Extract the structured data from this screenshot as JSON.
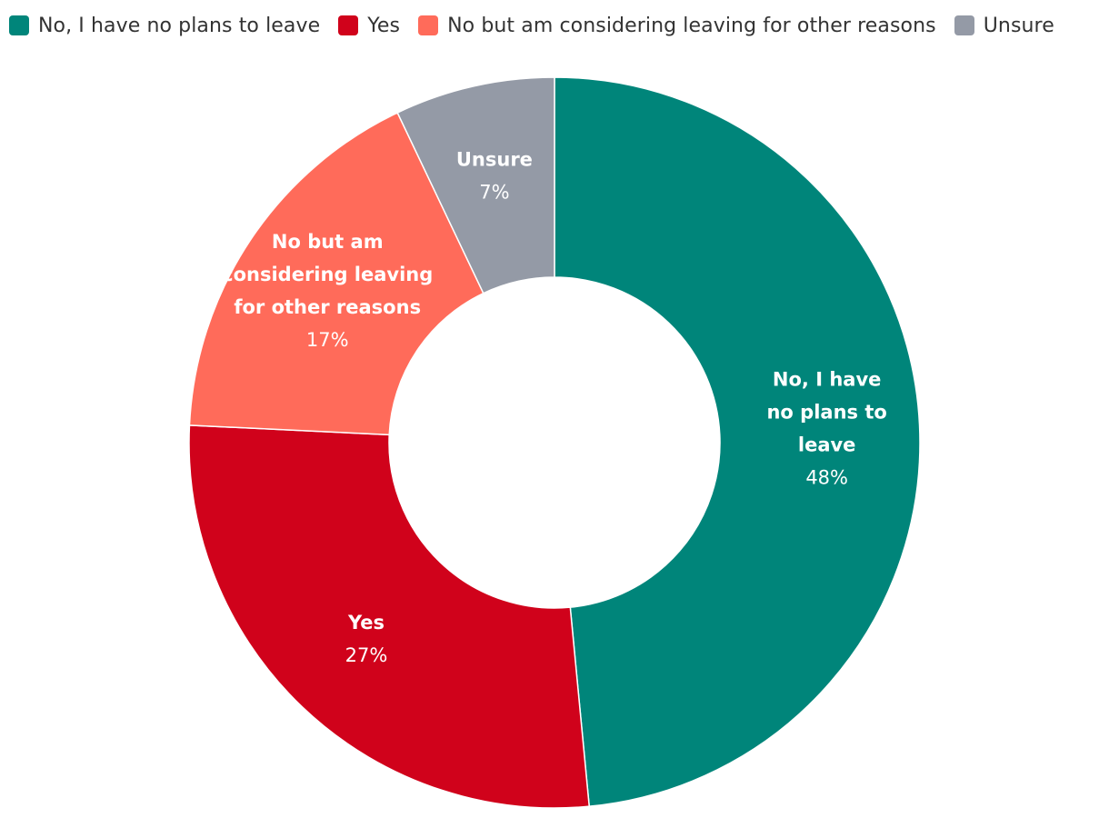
{
  "chart_data": {
    "type": "pie",
    "variant": "donut",
    "title": "",
    "legend": "top-left",
    "slices": [
      {
        "label": "No, I have no plans to leave",
        "value": 48,
        "value_label": "48%",
        "color": "#00857A",
        "display_lines": [
          "No, I have",
          "no plans to",
          "leave"
        ]
      },
      {
        "label": "Yes",
        "value": 27,
        "value_label": "27%",
        "color": "#D0021B",
        "display_lines": [
          "Yes"
        ]
      },
      {
        "label": "No but am considering leaving for other reasons",
        "value": 17,
        "value_label": "17%",
        "color": "#FF6B5A",
        "display_lines": [
          "No but am",
          "considering leaving",
          "for other reasons"
        ]
      },
      {
        "label": "Unsure",
        "value": 7,
        "value_label": "7%",
        "color": "#949AA6",
        "display_lines": [
          "Unsure"
        ]
      }
    ]
  }
}
